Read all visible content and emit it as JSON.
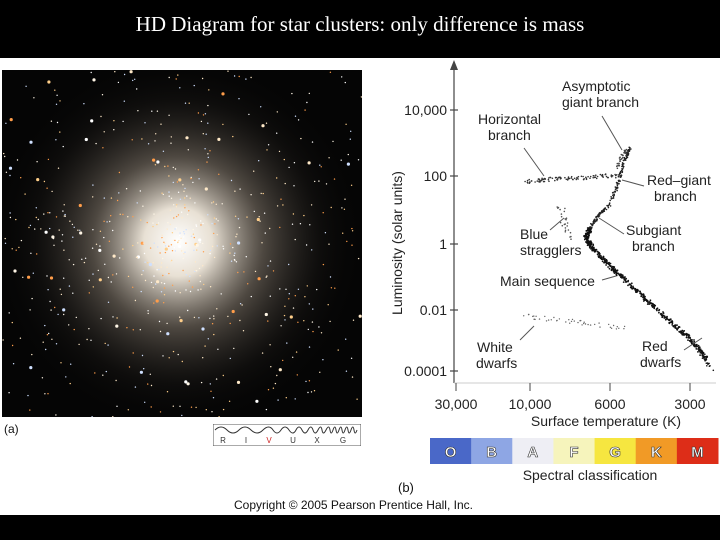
{
  "slide": {
    "title": "HD Diagram for star clusters: only difference is mass",
    "copyright": "Copyright © 2005 Pearson Prentice Hall, Inc."
  },
  "photo": {
    "panel_label": "(a)",
    "filter_letters": [
      "R",
      "I",
      "V",
      "U",
      "X",
      "G"
    ],
    "active_filter_color": "#cc2222"
  },
  "diagram": {
    "panel_label": "(b)",
    "y_axis_label": "Luminosity (solar units)",
    "y_ticks": [
      "10,000",
      "100",
      "1",
      "0.01",
      "0.0001"
    ],
    "x_axis_label": "Surface temperature (K)",
    "x_ticks": [
      "30,000",
      "10,000",
      "6000",
      "3000"
    ],
    "spectral_label": "Spectral classification",
    "spectral_classes": [
      {
        "letter": "O",
        "color": "#4a68c8"
      },
      {
        "letter": "B",
        "color": "#8ea6e4"
      },
      {
        "letter": "A",
        "color": "#eeeef4"
      },
      {
        "letter": "F",
        "color": "#f6f4bc"
      },
      {
        "letter": "G",
        "color": "#f6e640"
      },
      {
        "letter": "K",
        "color": "#f19a26"
      },
      {
        "letter": "M",
        "color": "#dd2d18"
      }
    ],
    "annotations": {
      "agb_line1": "Asymptotic",
      "agb_line2": "giant branch",
      "hb_line1": "Horizontal",
      "hb_line2": "branch",
      "rg_line1": "Red–giant",
      "rg_line2": "branch",
      "sg_line1": "Subgiant",
      "sg_line2": "branch",
      "bs_line1": "Blue",
      "bs_line2": "stragglers",
      "ms": "Main sequence",
      "wd_line1": "White",
      "wd_line2": "dwarfs",
      "rd_line1": "Red",
      "rd_line2": "dwarfs"
    }
  }
}
